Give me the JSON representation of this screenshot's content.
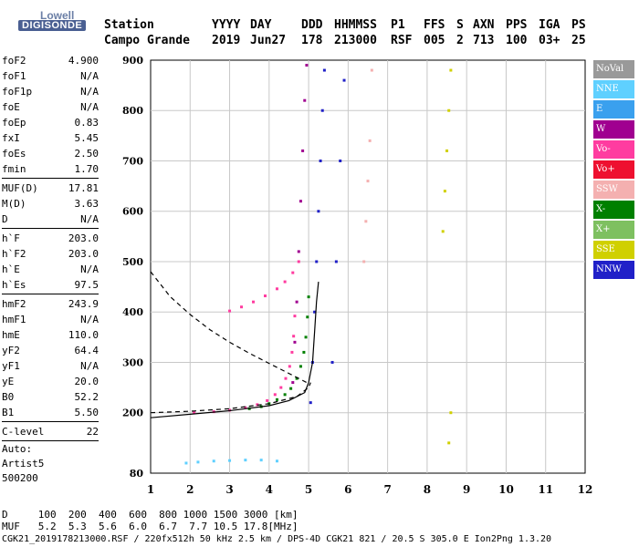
{
  "logo": {
    "brand": "Lowell",
    "product": "DIGISONDE"
  },
  "header": {
    "labels": [
      "Station",
      "YYYY",
      "DAY",
      "DDD",
      "HHMMSS",
      "P1",
      "FFS",
      "S",
      "AXN",
      "PPS",
      "IGA",
      "PS"
    ],
    "values": [
      "Campo Grande",
      "2019",
      "Jun27",
      "178",
      "213000",
      "RSF",
      "005",
      "2",
      "713",
      "100",
      "03+",
      "25"
    ]
  },
  "params": [
    {
      "group": [
        {
          "k": "foF2",
          "v": "4.900"
        },
        {
          "k": "foF1",
          "v": "N/A"
        },
        {
          "k": "foF1p",
          "v": "N/A"
        },
        {
          "k": "foE",
          "v": "N/A"
        },
        {
          "k": "foEp",
          "v": "0.83"
        },
        {
          "k": "fxI",
          "v": "5.45"
        },
        {
          "k": "foEs",
          "v": "2.50"
        },
        {
          "k": "fmin",
          "v": "1.70"
        }
      ]
    },
    {
      "group": [
        {
          "k": "MUF(D)",
          "v": "17.81"
        },
        {
          "k": "M(D)",
          "v": "3.63"
        },
        {
          "k": "D",
          "v": "N/A"
        }
      ]
    },
    {
      "group": [
        {
          "k": "h`F",
          "v": "203.0"
        },
        {
          "k": "h`F2",
          "v": "203.0"
        },
        {
          "k": "h`E",
          "v": "N/A"
        },
        {
          "k": "h`Es",
          "v": "97.5"
        }
      ]
    },
    {
      "group": [
        {
          "k": "hmF2",
          "v": "243.9"
        },
        {
          "k": "hmF1",
          "v": "N/A"
        },
        {
          "k": "hmE",
          "v": "110.0"
        },
        {
          "k": "yF2",
          "v": "64.4"
        },
        {
          "k": "yF1",
          "v": "N/A"
        },
        {
          "k": "yE",
          "v": "20.0"
        },
        {
          "k": "B0",
          "v": "52.2"
        },
        {
          "k": "B1",
          "v": "5.50"
        }
      ]
    },
    {
      "group": [
        {
          "k": "C-level",
          "v": "22"
        }
      ]
    }
  ],
  "auto": [
    "Auto:",
    "Artist5",
    "500200"
  ],
  "legend": [
    {
      "label": "NoVal",
      "color": "#999999"
    },
    {
      "label": "NNE",
      "color": "#5fd0ff"
    },
    {
      "label": "E",
      "color": "#3aa0ee"
    },
    {
      "label": "W",
      "color": "#a00090"
    },
    {
      "label": "Vo-",
      "color": "#ff3ca0"
    },
    {
      "label": "Vo+",
      "color": "#ee1030"
    },
    {
      "label": "SSW",
      "color": "#f4b0b0"
    },
    {
      "label": "X-",
      "color": "#008000"
    },
    {
      "label": "X+",
      "color": "#7ec060"
    },
    {
      "label": "SSE",
      "color": "#d0d000"
    },
    {
      "label": "NNW",
      "color": "#2020c8"
    }
  ],
  "footer": {
    "d_label": "D",
    "d_values": [
      "100",
      "200",
      "400",
      "600",
      "800",
      "1000",
      "1500",
      "3000",
      "[km]"
    ],
    "muf_label": "MUF",
    "muf_values": [
      "5.2",
      "5.3",
      "5.6",
      "6.0",
      "6.7",
      "7.7",
      "10.5",
      "17.8",
      "[MHz]"
    ],
    "line": "CGK21_2019178213000.RSF / 220fx512h 50 kHz 2.5 km / DPS-4D CGK21 821 / 20.5 S 305.0 E Ion2Png 1.3.20"
  },
  "chart_data": {
    "type": "scatter",
    "xlim": [
      1,
      12
    ],
    "ylim": [
      80,
      900
    ],
    "x_ticks": [
      "1",
      "2",
      "3",
      "4",
      "5",
      "6",
      "7",
      "8",
      "9",
      "10",
      "11",
      "12"
    ],
    "y_ticks": [
      "80",
      "200",
      "300",
      "400",
      "500",
      "600",
      "700",
      "800",
      "900"
    ],
    "grid": true,
    "legend_position": "right",
    "series": [
      {
        "name": "X-",
        "color": "#008000",
        "points": [
          [
            3.5,
            208
          ],
          [
            3.8,
            212
          ],
          [
            4.0,
            218
          ],
          [
            4.2,
            226
          ],
          [
            4.4,
            236
          ],
          [
            4.55,
            248
          ],
          [
            4.7,
            268
          ],
          [
            4.8,
            292
          ],
          [
            4.88,
            320
          ],
          [
            4.93,
            350
          ],
          [
            4.97,
            390
          ],
          [
            5.0,
            430
          ]
        ]
      },
      {
        "name": "Vo-",
        "color": "#ff3ca0",
        "points": [
          [
            2.1,
            200
          ],
          [
            2.6,
            202
          ],
          [
            3.0,
            205
          ],
          [
            3.4,
            210
          ],
          [
            3.7,
            216
          ],
          [
            3.95,
            224
          ],
          [
            4.15,
            236
          ],
          [
            4.3,
            250
          ],
          [
            4.42,
            268
          ],
          [
            4.52,
            292
          ],
          [
            4.58,
            320
          ],
          [
            4.62,
            352
          ],
          [
            4.65,
            392
          ]
        ]
      },
      {
        "name": "Vo- (2nd hop)",
        "color": "#ff3ca0",
        "points": [
          [
            3.0,
            402
          ],
          [
            3.3,
            410
          ],
          [
            3.6,
            420
          ],
          [
            3.9,
            432
          ],
          [
            4.2,
            446
          ],
          [
            4.4,
            460
          ],
          [
            4.6,
            478
          ],
          [
            4.75,
            500
          ]
        ]
      },
      {
        "name": "NNE",
        "color": "#5fd0ff",
        "points": [
          [
            1.9,
            100
          ],
          [
            2.2,
            102
          ],
          [
            2.6,
            104
          ],
          [
            3.0,
            105
          ],
          [
            3.4,
            106
          ],
          [
            3.8,
            106
          ],
          [
            4.2,
            104
          ]
        ]
      },
      {
        "name": "NNW",
        "color": "#2020c8",
        "points": [
          [
            5.05,
            220
          ],
          [
            5.1,
            300
          ],
          [
            5.15,
            400
          ],
          [
            5.2,
            500
          ],
          [
            5.25,
            600
          ],
          [
            5.3,
            700
          ],
          [
            5.35,
            800
          ],
          [
            5.4,
            880
          ],
          [
            5.6,
            300
          ],
          [
            5.7,
            500
          ],
          [
            5.8,
            700
          ],
          [
            5.9,
            860
          ]
        ]
      },
      {
        "name": "W",
        "color": "#a00090",
        "points": [
          [
            4.6,
            260
          ],
          [
            4.65,
            340
          ],
          [
            4.7,
            420
          ],
          [
            4.75,
            520
          ],
          [
            4.8,
            620
          ],
          [
            4.85,
            720
          ],
          [
            4.9,
            820
          ],
          [
            4.95,
            890
          ]
        ]
      },
      {
        "name": "SSE",
        "color": "#d0d000",
        "points": [
          [
            8.4,
            560
          ],
          [
            8.45,
            640
          ],
          [
            8.5,
            720
          ],
          [
            8.55,
            800
          ],
          [
            8.6,
            880
          ],
          [
            8.55,
            140
          ],
          [
            8.6,
            200
          ]
        ]
      },
      {
        "name": "SSW",
        "color": "#f4b0b0",
        "points": [
          [
            6.4,
            500
          ],
          [
            6.45,
            580
          ],
          [
            6.5,
            660
          ],
          [
            6.55,
            740
          ],
          [
            6.6,
            880
          ]
        ]
      }
    ],
    "curves": [
      {
        "name": "profile-black",
        "color": "#000000",
        "style": "solid",
        "points": [
          [
            1,
            190
          ],
          [
            2,
            197
          ],
          [
            3,
            204
          ],
          [
            4,
            214
          ],
          [
            4.5,
            224
          ],
          [
            4.9,
            240
          ],
          [
            5.0,
            260
          ],
          [
            5.1,
            300
          ],
          [
            5.15,
            360
          ],
          [
            5.2,
            420
          ],
          [
            5.25,
            460
          ]
        ]
      },
      {
        "name": "profile-dashed",
        "color": "#000000",
        "style": "dashed",
        "points": [
          [
            1,
            200
          ],
          [
            2,
            203
          ],
          [
            3,
            208
          ],
          [
            4,
            218
          ],
          [
            4.7,
            232
          ],
          [
            5.0,
            250
          ],
          [
            5.05,
            260
          ]
        ]
      },
      {
        "name": "topside",
        "color": "#000000",
        "style": "dashed",
        "points": [
          [
            1,
            480
          ],
          [
            1.5,
            430
          ],
          [
            2,
            395
          ],
          [
            2.5,
            365
          ],
          [
            3,
            340
          ],
          [
            3.5,
            318
          ],
          [
            4,
            298
          ],
          [
            4.5,
            278
          ],
          [
            5,
            258
          ]
        ]
      }
    ]
  }
}
